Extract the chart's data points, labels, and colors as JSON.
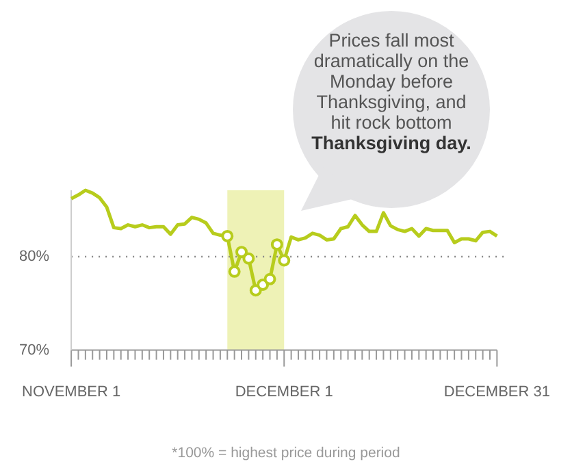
{
  "chart_data": {
    "type": "line",
    "annotations": [
      "Prices fall most dramatically on the Monday before Thanksgiving, and hit rock bottom",
      "Thanksgiving day.",
      "*100% = highest price during period"
    ],
    "x": [
      "--11-01",
      "--11-02",
      "--11-03",
      "--11-04",
      "--11-05",
      "--11-06",
      "--11-07",
      "--11-08",
      "--11-09",
      "--11-10",
      "--11-11",
      "--11-12",
      "--11-13",
      "--11-14",
      "--11-15",
      "--11-16",
      "--11-17",
      "--11-18",
      "--11-19",
      "--11-20",
      "--11-21",
      "--11-22",
      "--11-23",
      "--11-24",
      "--11-25",
      "--11-26",
      "--11-27",
      "--11-28",
      "--11-29",
      "--11-30",
      "--12-01",
      "--12-02",
      "--12-03",
      "--12-04",
      "--12-05",
      "--12-06",
      "--12-07",
      "--12-08",
      "--12-09",
      "--12-10",
      "--12-11",
      "--12-12",
      "--12-13",
      "--12-14",
      "--12-15",
      "--12-16",
      "--12-17",
      "--12-18",
      "--12-19",
      "--12-20",
      "--12-21",
      "--12-22",
      "--12-23",
      "--12-24",
      "--12-25",
      "--12-26",
      "--12-27",
      "--12-28",
      "--12-29",
      "--12-30",
      "--12-31"
    ],
    "series": [
      {
        "color": "#b7cc1c",
        "marker": "none",
        "values": [
          86.2,
          86.6,
          87.1,
          86.8,
          86.3,
          85.3,
          83.1,
          83.0,
          83.4,
          83.2,
          83.4,
          83.1,
          83.2,
          83.2,
          82.4,
          83.4,
          83.5,
          84.2,
          84.0,
          83.6,
          82.5,
          82.3,
          82.2,
          78.4,
          80.5,
          79.8,
          76.4,
          77.0,
          77.6,
          81.3,
          79.6,
          82.1,
          81.8,
          82.0,
          82.5,
          82.3,
          81.8,
          81.9,
          83.0,
          83.2,
          84.4,
          83.4,
          82.7,
          82.7,
          84.7,
          83.3,
          82.9,
          82.7,
          83.0,
          82.2,
          83.0,
          82.8,
          82.8,
          82.8,
          81.5,
          81.9,
          81.9,
          81.7,
          82.6,
          82.7,
          82.2
        ]
      },
      {
        "type": "scatter",
        "color": "#b7cc1c",
        "marker": "circle",
        "x": [
          "--11-23",
          "--11-24",
          "--11-25",
          "--11-26",
          "--11-27",
          "--11-28",
          "--11-29",
          "--11-30",
          "--12-01"
        ],
        "values": [
          82.2,
          78.4,
          80.5,
          79.8,
          76.4,
          77.0,
          77.6,
          81.3,
          79.6
        ]
      }
    ],
    "xlim": [
      "--11-01",
      "--12-31"
    ],
    "xticks": [
      {
        "value": "--11-01",
        "label": "NOVEMBER 1"
      },
      {
        "value": "--11-02",
        "label": null
      },
      {
        "value": "--11-03",
        "label": null
      },
      {
        "value": "--11-04",
        "label": null
      },
      {
        "value": "--11-05",
        "label": null
      },
      {
        "value": "--11-06",
        "label": null
      },
      {
        "value": "--11-07",
        "label": null
      },
      {
        "value": "--11-08",
        "label": null
      },
      {
        "value": "--11-09",
        "label": null
      },
      {
        "value": "--11-10",
        "label": null
      },
      {
        "value": "--11-11",
        "label": null
      },
      {
        "value": "--11-12",
        "label": null
      },
      {
        "value": "--11-13",
        "label": null
      },
      {
        "value": "--11-14",
        "label": null
      },
      {
        "value": "--11-15",
        "label": null
      },
      {
        "value": "--11-16",
        "label": null
      },
      {
        "value": "--11-17",
        "label": null
      },
      {
        "value": "--11-18",
        "label": null
      },
      {
        "value": "--11-19",
        "label": null
      },
      {
        "value": "--11-20",
        "label": null
      },
      {
        "value": "--11-21",
        "label": null
      },
      {
        "value": "--11-22",
        "label": null
      },
      {
        "value": "--11-23",
        "label": null
      },
      {
        "value": "--11-24",
        "label": null
      },
      {
        "value": "--11-25",
        "label": null
      },
      {
        "value": "--11-26",
        "label": null
      },
      {
        "value": "--11-27",
        "label": null
      },
      {
        "value": "--11-28",
        "label": null
      },
      {
        "value": "--11-29",
        "label": null
      },
      {
        "value": "--11-30",
        "label": null
      },
      {
        "value": "--12-01",
        "label": "DECEMBER 1"
      },
      {
        "value": "--12-02",
        "label": null
      },
      {
        "value": "--12-03",
        "label": null
      },
      {
        "value": "--12-04",
        "label": null
      },
      {
        "value": "--12-05",
        "label": null
      },
      {
        "value": "--12-06",
        "label": null
      },
      {
        "value": "--12-07",
        "label": null
      },
      {
        "value": "--12-08",
        "label": null
      },
      {
        "value": "--12-09",
        "label": null
      },
      {
        "value": "--12-10",
        "label": null
      },
      {
        "value": "--12-11",
        "label": null
      },
      {
        "value": "--12-12",
        "label": null
      },
      {
        "value": "--12-13",
        "label": null
      },
      {
        "value": "--12-14",
        "label": null
      },
      {
        "value": "--12-15",
        "label": null
      },
      {
        "value": "--12-16",
        "label": null
      },
      {
        "value": "--12-17",
        "label": null
      },
      {
        "value": "--12-18",
        "label": null
      },
      {
        "value": "--12-19",
        "label": null
      },
      {
        "value": "--12-20",
        "label": null
      },
      {
        "value": "--12-21",
        "label": null
      },
      {
        "value": "--12-22",
        "label": null
      },
      {
        "value": "--12-23",
        "label": null
      },
      {
        "value": "--12-24",
        "label": null
      },
      {
        "value": "--12-25",
        "label": null
      },
      {
        "value": "--12-26",
        "label": null
      },
      {
        "value": "--12-27",
        "label": null
      },
      {
        "value": "--12-28",
        "label": null
      },
      {
        "value": "--12-29",
        "label": null
      },
      {
        "value": "--12-30",
        "label": null
      },
      {
        "value": "--12-31",
        "label": "DECEMBER 31"
      }
    ],
    "ylim": [
      70,
      87.1
    ],
    "yticks": [
      {
        "value": 70,
        "label": "70%"
      },
      {
        "value": 80,
        "label": "80%"
      }
    ],
    "grid": "y",
    "legend": false,
    "bands": [
      {
        "axis": "x",
        "from": "--11-23",
        "to": "--12-01",
        "color": "#eef2b6"
      }
    ]
  }
}
